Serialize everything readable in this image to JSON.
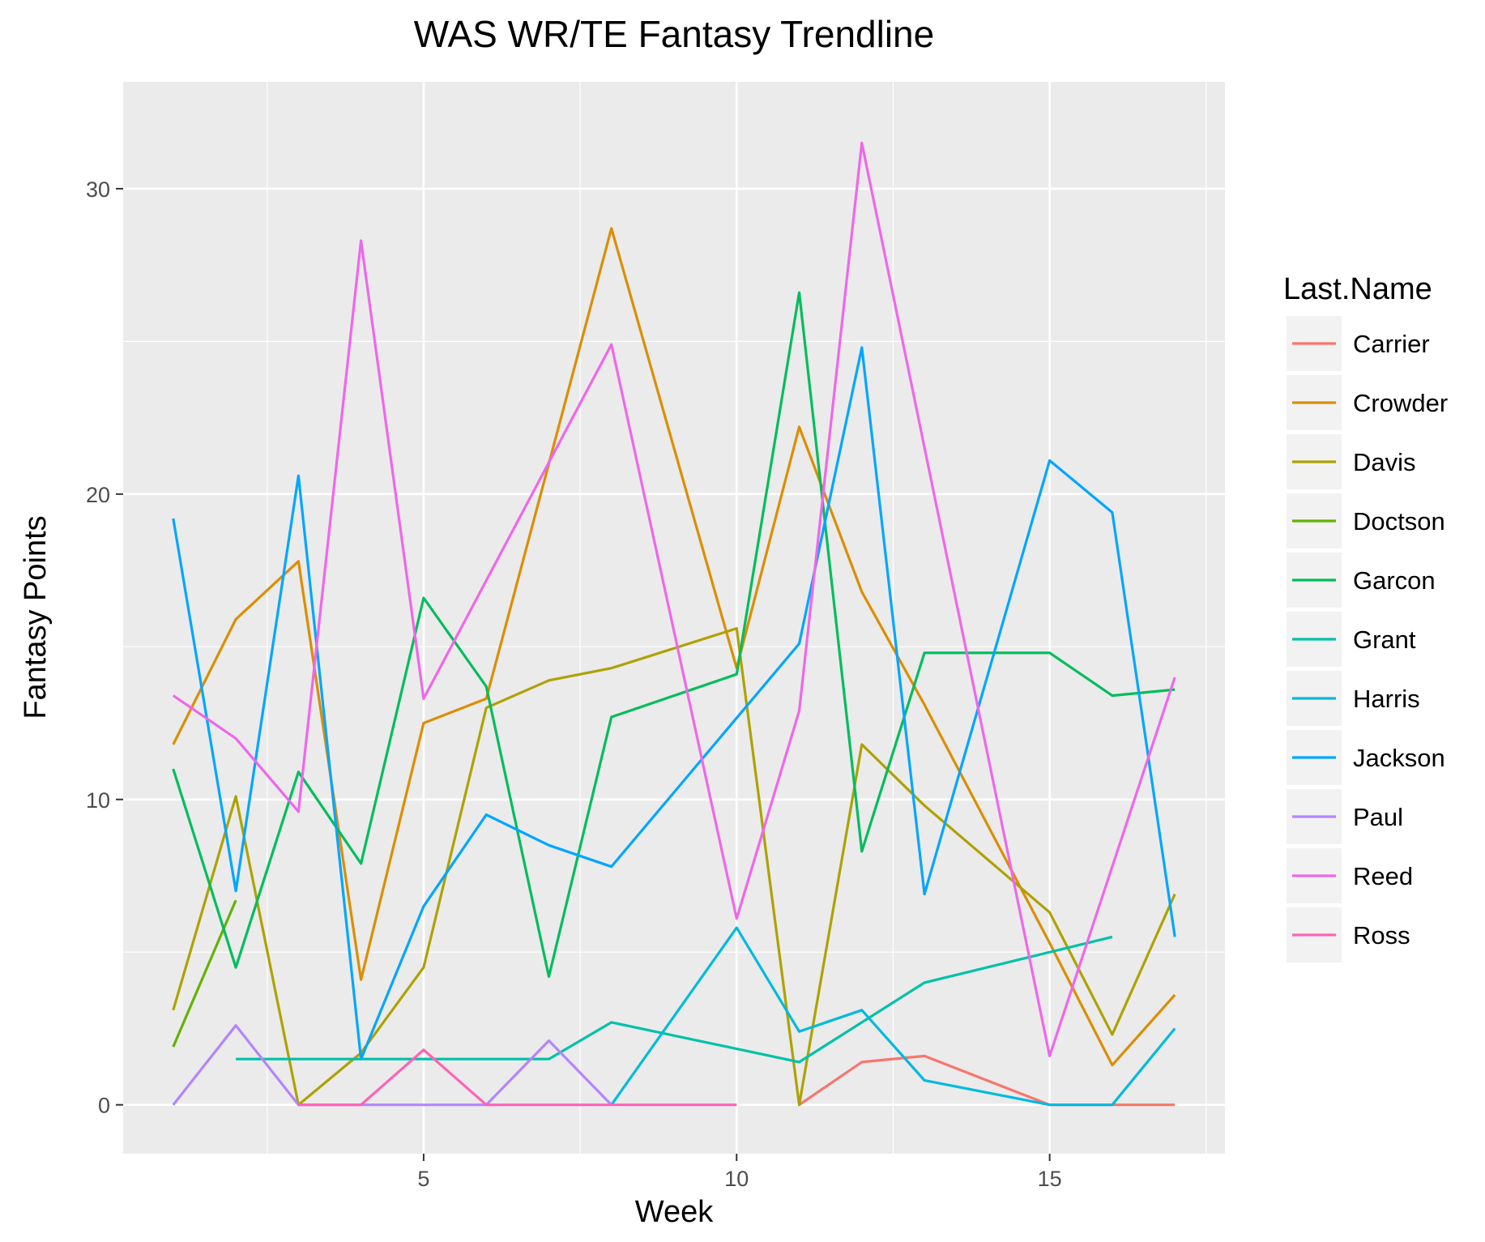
{
  "chart_data": {
    "type": "line",
    "title": "WAS WR/TE Fantasy Trendline",
    "xlabel": "Week",
    "ylabel": "Fantasy Points",
    "xlim": [
      0.2,
      17.8
    ],
    "ylim": [
      -1.6,
      33.5
    ],
    "x_ticks": [
      5,
      10,
      15
    ],
    "x_tick_labels": [
      "5",
      "10",
      "15"
    ],
    "y_ticks": [
      0,
      10,
      20,
      30
    ],
    "y_tick_labels": [
      "0",
      "10",
      "20",
      "30"
    ],
    "grid": true,
    "legend_position": "right",
    "legend_title": "Last.Name",
    "series": [
      {
        "name": "Carrier",
        "color": "#F8766D",
        "points": [
          [
            11,
            0
          ],
          [
            12,
            1.4
          ],
          [
            13,
            1.6
          ],
          [
            15,
            0
          ],
          [
            16,
            0
          ],
          [
            17,
            0
          ]
        ]
      },
      {
        "name": "Crowder",
        "color": "#DB8E00",
        "points": [
          [
            1,
            11.8
          ],
          [
            2,
            15.9
          ],
          [
            3,
            17.8
          ],
          [
            4,
            4.1
          ],
          [
            5,
            12.5
          ],
          [
            6,
            13.3
          ],
          [
            7,
            21
          ],
          [
            8,
            28.7
          ],
          [
            10,
            14.3
          ],
          [
            11,
            22.2
          ],
          [
            12,
            16.8
          ],
          [
            13,
            13.1
          ],
          [
            15,
            5.3
          ],
          [
            16,
            1.3
          ],
          [
            17,
            3.6
          ]
        ]
      },
      {
        "name": "Davis",
        "color": "#AEA200",
        "points": [
          [
            1,
            3.1
          ],
          [
            2,
            10.1
          ],
          [
            3,
            0
          ],
          [
            4,
            1.7
          ],
          [
            5,
            4.5
          ],
          [
            6,
            13
          ],
          [
            7,
            13.9
          ],
          [
            8,
            14.3
          ],
          [
            10,
            15.6
          ],
          [
            11,
            0
          ],
          [
            12,
            11.8
          ],
          [
            13,
            9.8
          ],
          [
            15,
            6.3
          ],
          [
            16,
            2.3
          ],
          [
            17,
            6.9
          ]
        ]
      },
      {
        "name": "Doctson",
        "color": "#64B200",
        "points": [
          [
            1,
            1.9
          ],
          [
            2,
            6.7
          ]
        ]
      },
      {
        "name": "Garcon",
        "color": "#00BD5C",
        "points": [
          [
            1,
            11
          ],
          [
            2,
            4.5
          ],
          [
            3,
            10.9
          ],
          [
            4,
            7.9
          ],
          [
            5,
            16.6
          ],
          [
            6,
            13.7
          ],
          [
            7,
            4.2
          ],
          [
            8,
            12.7
          ],
          [
            10,
            14.1
          ],
          [
            11,
            26.6
          ],
          [
            12,
            8.3
          ],
          [
            13,
            14.8
          ],
          [
            15,
            14.8
          ],
          [
            16,
            13.4
          ],
          [
            17,
            13.6
          ]
        ]
      },
      {
        "name": "Grant",
        "color": "#00C1A7",
        "points": [
          [
            2,
            1.5
          ],
          [
            7,
            1.5
          ],
          [
            8,
            2.7
          ],
          [
            11,
            1.4
          ],
          [
            13,
            4
          ],
          [
            16,
            5.5
          ]
        ]
      },
      {
        "name": "Harris",
        "color": "#00BADE",
        "points": [
          [
            8,
            0
          ],
          [
            10,
            5.8
          ],
          [
            11,
            2.4
          ],
          [
            12,
            3.1
          ],
          [
            13,
            0.8
          ],
          [
            15,
            0
          ],
          [
            16,
            0
          ],
          [
            17,
            2.5
          ]
        ]
      },
      {
        "name": "Jackson",
        "color": "#00A6FF",
        "points": [
          [
            1,
            19.2
          ],
          [
            2,
            7
          ],
          [
            3,
            20.6
          ],
          [
            4,
            1.5
          ],
          [
            5,
            6.5
          ],
          [
            6,
            9.5
          ],
          [
            7,
            8.5
          ],
          [
            8,
            7.8
          ],
          [
            11,
            15.1
          ],
          [
            12,
            24.8
          ],
          [
            13,
            6.9
          ],
          [
            15,
            21.1
          ],
          [
            16,
            19.4
          ],
          [
            17,
            5.5
          ]
        ]
      },
      {
        "name": "Paul",
        "color": "#B385FF",
        "points": [
          [
            1,
            0
          ],
          [
            2,
            2.6
          ],
          [
            3,
            0
          ],
          [
            6,
            0
          ],
          [
            7,
            2.1
          ],
          [
            8,
            0
          ]
        ]
      },
      {
        "name": "Reed",
        "color": "#EF67EB",
        "points": [
          [
            1,
            13.4
          ],
          [
            2,
            12
          ],
          [
            3,
            9.6
          ],
          [
            4,
            28.3
          ],
          [
            5,
            13.3
          ],
          [
            8,
            24.9
          ],
          [
            10,
            6.1
          ],
          [
            11,
            12.9
          ],
          [
            12,
            31.5
          ],
          [
            15,
            1.6
          ],
          [
            17,
            14
          ]
        ]
      },
      {
        "name": "Ross",
        "color": "#FF63B6",
        "points": [
          [
            3,
            0
          ],
          [
            4,
            0
          ],
          [
            5,
            1.8
          ],
          [
            6,
            0
          ],
          [
            10,
            0
          ]
        ]
      }
    ]
  }
}
